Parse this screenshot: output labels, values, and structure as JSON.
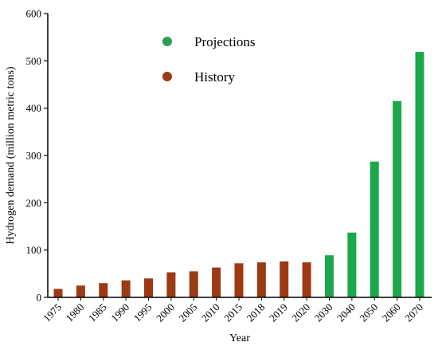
{
  "chart_data": {
    "type": "bar",
    "xlabel": "Year",
    "ylabel": "Hydrogen demand (million metric tons)",
    "ylim": [
      0,
      600
    ],
    "yticks": [
      0,
      100,
      200,
      300,
      400,
      500,
      600
    ],
    "grid": false,
    "legend_position": "top-center",
    "categories": [
      "1975",
      "1980",
      "1985",
      "1990",
      "1995",
      "2000",
      "2005",
      "2010",
      "2015",
      "2018",
      "2019",
      "2020",
      "2030",
      "2040",
      "2050",
      "2060",
      "2070"
    ],
    "series": [
      {
        "name": "History",
        "color": "#9b3a13",
        "values": [
          18,
          25,
          30,
          36,
          40,
          53,
          55,
          63,
          72,
          74,
          76,
          74,
          null,
          null,
          null,
          null,
          null
        ]
      },
      {
        "name": "Projections",
        "color": "#1aa84a",
        "values": [
          null,
          null,
          null,
          null,
          null,
          null,
          null,
          null,
          null,
          null,
          null,
          null,
          89,
          137,
          287,
          415,
          519
        ]
      }
    ],
    "legend": [
      {
        "label": "Projections",
        "color": "#2e9e56"
      },
      {
        "label": "History",
        "color": "#9b3a13"
      }
    ]
  }
}
